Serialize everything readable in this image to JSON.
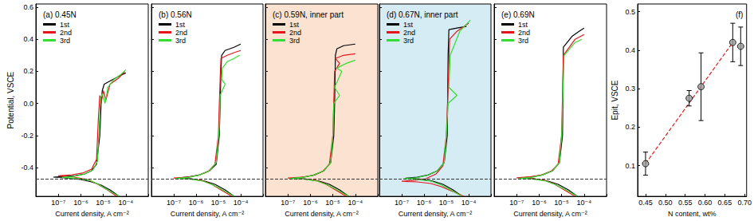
{
  "chart_data": [
    {
      "type": "line",
      "title": "(a) 0.45N",
      "xlabel": "Current density, A cm⁻²",
      "ylabel": "Potential, VSCE",
      "log": "x",
      "xlim": [
        1e-08,
        0.001
      ],
      "xticks": [
        {
          "value": 1e-07,
          "label": "10⁻⁷"
        },
        {
          "value": 1e-06,
          "label": "10⁻⁶"
        },
        {
          "value": 1e-05,
          "label": "10⁻⁵"
        },
        {
          "value": 0.0001,
          "label": "10⁻⁴"
        }
      ],
      "ylim": [
        -0.58,
        0.62
      ],
      "yticks": [
        -0.4,
        -0.2,
        {
          "value": 0,
          "label": "0.0"
        },
        0.2,
        0.4,
        0.6
      ],
      "hline": -0.47,
      "legend": "upper left",
      "tick_labels": true,
      "grid": false,
      "series": [
        {
          "name": "1st",
          "color": "#000000",
          "x": [
            5e-05,
            2e-05,
            8e-06,
            3e-06,
            1e-06,
            2e-07,
            6e-08,
            2e-07,
            6e-07,
            1.5e-06,
            3e-06,
            5e-06,
            7e-06,
            8e-06,
            9e-06,
            1.1e-05,
            2e-05,
            5e-05,
            0.0001
          ],
          "values": [
            -0.58,
            -0.54,
            -0.51,
            -0.49,
            -0.475,
            -0.465,
            -0.46,
            -0.455,
            -0.45,
            -0.44,
            -0.42,
            -0.38,
            -0.2,
            0.0,
            0.08,
            0.12,
            0.14,
            0.17,
            0.19
          ]
        },
        {
          "name": "2nd",
          "color": "#e8141c",
          "x": [
            4e-05,
            1.5e-05,
            5e-06,
            2e-06,
            5e-07,
            1e-07,
            4e-07,
            1.2e-06,
            3e-06,
            5e-06,
            6e-06,
            7e-06,
            8e-06,
            1e-05,
            1.3e-05,
            2e-05,
            5e-05,
            9e-05
          ],
          "values": [
            -0.58,
            -0.54,
            -0.5,
            -0.475,
            -0.46,
            -0.452,
            -0.445,
            -0.435,
            -0.41,
            -0.35,
            -0.1,
            0.05,
            0.0,
            0.08,
            0.02,
            0.12,
            0.16,
            0.2
          ]
        },
        {
          "name": "3rd",
          "color": "#33dd33",
          "x": [
            5e-05,
            1.8e-05,
            6e-06,
            2.5e-06,
            7e-07,
            1.5e-07,
            5e-07,
            1.4e-06,
            3.5e-06,
            5.5e-06,
            6.5e-06,
            7.5e-06,
            9e-06,
            1.2e-05,
            1.6e-05,
            3e-05,
            6e-05,
            0.0001
          ],
          "values": [
            -0.58,
            -0.545,
            -0.505,
            -0.48,
            -0.468,
            -0.462,
            -0.455,
            -0.442,
            -0.415,
            -0.36,
            -0.15,
            0.03,
            0.06,
            0.0,
            0.1,
            0.15,
            0.18,
            0.21
          ]
        }
      ]
    },
    {
      "type": "line",
      "title": "(b) 0.56N",
      "xlabel": "Current density, A cm⁻²",
      "log": "x",
      "xlim": [
        1e-08,
        0.001
      ],
      "xticks": [
        {
          "value": 1e-07,
          "label": "10⁻⁷"
        },
        {
          "value": 1e-06,
          "label": "10⁻⁶"
        },
        {
          "value": 1e-05,
          "label": "10⁻⁵"
        },
        {
          "value": 0.0001,
          "label": "10⁻⁴"
        }
      ],
      "ylim": [
        -0.58,
        0.62
      ],
      "yticks": [
        -0.4,
        -0.2,
        {
          "value": 0,
          "label": "0.0"
        },
        0.2,
        0.4,
        0.6
      ],
      "hline": -0.47,
      "legend": "upper left",
      "tick_labels": "x",
      "grid": false,
      "series": [
        {
          "name": "1st",
          "color": "#000000",
          "x": [
            5e-05,
            2e-05,
            7e-06,
            2.5e-06,
            6e-07,
            1.5e-07,
            5e-07,
            1.5e-06,
            4e-06,
            8e-06,
            1.1e-05,
            1.2e-05,
            1.3e-05,
            1.4e-05,
            2e-05,
            5e-05,
            0.0001
          ],
          "values": [
            -0.58,
            -0.54,
            -0.505,
            -0.485,
            -0.47,
            -0.465,
            -0.458,
            -0.445,
            -0.42,
            -0.38,
            -0.2,
            0.0,
            0.2,
            0.3,
            0.33,
            0.35,
            0.37
          ]
        },
        {
          "name": "2nd",
          "color": "#e8141c",
          "x": [
            4e-05,
            1.5e-05,
            5e-06,
            1.8e-06,
            4e-07,
            1e-07,
            4e-07,
            1.2e-06,
            3.5e-06,
            7e-06,
            1e-05,
            1.1e-05,
            1.2e-05,
            1.3e-05,
            2.5e-05,
            6e-05,
            0.0001
          ],
          "values": [
            -0.58,
            -0.545,
            -0.505,
            -0.48,
            -0.47,
            -0.466,
            -0.46,
            -0.45,
            -0.425,
            -0.38,
            -0.2,
            0.0,
            0.15,
            0.28,
            0.3,
            0.32,
            0.33
          ]
        },
        {
          "name": "3rd",
          "color": "#33dd33",
          "x": [
            5e-05,
            1.8e-05,
            6e-06,
            2e-06,
            5e-07,
            1.2e-07,
            4.5e-07,
            1.3e-06,
            4e-06,
            8e-06,
            1.1e-05,
            1.2e-05,
            2e-05,
            1.4e-05,
            1.5e-05,
            2.5e-05,
            5e-05,
            9e-05
          ],
          "values": [
            -0.58,
            -0.545,
            -0.51,
            -0.485,
            -0.472,
            -0.468,
            -0.462,
            -0.448,
            -0.42,
            -0.37,
            -0.15,
            0.05,
            0.12,
            0.15,
            0.22,
            0.26,
            0.28,
            0.3
          ]
        }
      ]
    },
    {
      "type": "line",
      "title": "(c) 0.59N, inner part",
      "xlabel": "Current density, A cm⁻²",
      "log": "x",
      "xlim": [
        1e-08,
        0.001
      ],
      "xticks": [
        {
          "value": 1e-07,
          "label": "10⁻⁷"
        },
        {
          "value": 1e-06,
          "label": "10⁻⁶"
        },
        {
          "value": 1e-05,
          "label": "10⁻⁵"
        },
        {
          "value": 0.0001,
          "label": "10⁻⁴"
        }
      ],
      "ylim": [
        -0.58,
        0.62
      ],
      "yticks": [
        -0.4,
        -0.2,
        {
          "value": 0,
          "label": "0.0"
        },
        0.2,
        0.4,
        0.6
      ],
      "hline": -0.47,
      "legend": "upper left",
      "tick_labels": "x",
      "grid": false,
      "series": [
        {
          "name": "1st",
          "color": "#000000",
          "x": [
            5e-05,
            2e-05,
            7e-06,
            2.5e-06,
            6e-07,
            1.5e-07,
            5e-07,
            1.5e-06,
            4e-06,
            8e-06,
            1.1e-05,
            1.2e-05,
            1.3e-05,
            1.5e-05,
            3e-05,
            0.0001
          ],
          "values": [
            -0.58,
            -0.54,
            -0.505,
            -0.485,
            -0.472,
            -0.467,
            -0.46,
            -0.447,
            -0.42,
            -0.37,
            -0.2,
            0.0,
            0.3,
            0.34,
            0.36,
            0.37
          ]
        },
        {
          "name": "2nd",
          "color": "#e8141c",
          "x": [
            4e-05,
            1.5e-05,
            5e-06,
            1.8e-06,
            4e-07,
            1e-07,
            4e-07,
            1.2e-06,
            3.5e-06,
            7e-06,
            1e-05,
            1.1e-05,
            1.2e-05,
            2e-05,
            1.3e-05,
            3e-05,
            0.0001
          ],
          "values": [
            -0.58,
            -0.545,
            -0.505,
            -0.48,
            -0.47,
            -0.466,
            -0.46,
            -0.45,
            -0.425,
            -0.38,
            -0.2,
            0.0,
            0.2,
            0.25,
            0.28,
            0.3,
            0.31
          ]
        },
        {
          "name": "3rd",
          "color": "#33dd33",
          "x": [
            5e-05,
            1.8e-05,
            6e-06,
            2e-06,
            5e-07,
            1.2e-07,
            4.5e-07,
            1.3e-06,
            4e-06,
            8e-06,
            1e-05,
            1.1e-05,
            2e-05,
            1.2e-05,
            2.5e-05,
            1.5e-05,
            4e-05,
            0.0001
          ],
          "values": [
            -0.58,
            -0.545,
            -0.51,
            -0.485,
            -0.472,
            -0.468,
            -0.462,
            -0.448,
            -0.42,
            -0.37,
            -0.2,
            0.0,
            0.05,
            0.1,
            0.2,
            0.22,
            0.25,
            0.27
          ]
        }
      ]
    },
    {
      "type": "line",
      "title": "(d) 0.67N, inner part",
      "xlabel": "Current density, A cm⁻²",
      "log": "x",
      "xlim": [
        1e-08,
        0.001
      ],
      "xticks": [
        {
          "value": 1e-07,
          "label": "10⁻⁷"
        },
        {
          "value": 1e-06,
          "label": "10⁻⁶"
        },
        {
          "value": 1e-05,
          "label": "10⁻⁵"
        },
        {
          "value": 0.0001,
          "label": "10⁻⁴"
        }
      ],
      "ylim": [
        -0.58,
        0.62
      ],
      "yticks": [
        -0.4,
        -0.2,
        {
          "value": 0,
          "label": "0.0"
        },
        0.2,
        0.4,
        0.6
      ],
      "hline": -0.47,
      "legend": "upper left",
      "tick_labels": "x",
      "grid": false,
      "series": [
        {
          "name": "1st",
          "color": "#000000",
          "x": [
            5e-05,
            2e-05,
            7e-06,
            2.5e-06,
            6e-07,
            1.5e-07,
            5e-07,
            1.5e-06,
            4e-06,
            8e-06,
            1.1e-05,
            1.2e-05,
            1.3e-05,
            3e-05,
            8e-05
          ],
          "values": [
            -0.58,
            -0.54,
            -0.505,
            -0.485,
            -0.472,
            -0.467,
            -0.46,
            -0.447,
            -0.42,
            -0.37,
            -0.2,
            0.3,
            0.46,
            0.47,
            0.48
          ]
        },
        {
          "name": "2nd",
          "color": "#e8141c",
          "x": [
            6e-05,
            2e-05,
            6e-06,
            2e-06,
            5e-07,
            1e-07,
            4e-07,
            1.2e-06,
            3.5e-06,
            7e-06,
            1e-05,
            1.2e-05,
            1.4e-05,
            3e-05,
            0.0001
          ],
          "values": [
            -0.58,
            -0.55,
            -0.52,
            -0.5,
            -0.49,
            -0.486,
            -0.48,
            -0.47,
            -0.44,
            -0.39,
            -0.2,
            0.1,
            0.4,
            0.45,
            0.5
          ]
        },
        {
          "name": "3rd",
          "color": "#33dd33",
          "x": [
            5e-05,
            1.8e-05,
            6e-06,
            2e-06,
            5e-07,
            1.2e-07,
            4.5e-07,
            1.3e-06,
            4e-06,
            8e-06,
            1e-05,
            1.2e-05,
            3e-05,
            1.3e-05,
            1.5e-05,
            4e-05,
            0.00012
          ],
          "values": [
            -0.58,
            -0.545,
            -0.51,
            -0.485,
            -0.475,
            -0.47,
            -0.464,
            -0.45,
            -0.42,
            -0.37,
            -0.2,
            0.0,
            0.05,
            0.1,
            0.3,
            0.45,
            0.52
          ]
        }
      ]
    },
    {
      "type": "line",
      "title": "(e) 0.69N",
      "xlabel": "Current density, A cm⁻²",
      "log": "x",
      "xlim": [
        1e-08,
        0.001
      ],
      "xticks": [
        {
          "value": 1e-07,
          "label": "10⁻⁷"
        },
        {
          "value": 1e-06,
          "label": "10⁻⁶"
        },
        {
          "value": 1e-05,
          "label": "10⁻⁵"
        },
        {
          "value": 0.0001,
          "label": "10⁻⁴"
        }
      ],
      "ylim": [
        -0.58,
        0.62
      ],
      "yticks": [
        -0.4,
        -0.2,
        {
          "value": 0,
          "label": "0.0"
        },
        0.2,
        0.4,
        0.6
      ],
      "hline": -0.47,
      "legend": "upper left",
      "tick_labels": "x",
      "grid": false,
      "series": [
        {
          "name": "1st",
          "color": "#000000",
          "x": [
            5e-05,
            2e-05,
            7e-06,
            2.5e-06,
            6e-07,
            1.5e-07,
            5e-07,
            1.5e-06,
            4e-06,
            8e-06,
            1.1e-05,
            1.2e-05,
            3e-05,
            6e-05,
            0.0001
          ],
          "values": [
            -0.58,
            -0.54,
            -0.505,
            -0.485,
            -0.47,
            -0.465,
            -0.458,
            -0.445,
            -0.42,
            -0.37,
            -0.2,
            0.35,
            0.42,
            0.45,
            0.47
          ]
        },
        {
          "name": "2nd",
          "color": "#e8141c",
          "x": [
            4e-05,
            1.5e-05,
            5e-06,
            1.8e-06,
            4e-07,
            1e-07,
            4e-07,
            1.2e-06,
            3.5e-06,
            7e-06,
            1e-05,
            1.2e-05,
            4e-05,
            0.0001
          ],
          "values": [
            -0.58,
            -0.545,
            -0.505,
            -0.48,
            -0.468,
            -0.464,
            -0.458,
            -0.448,
            -0.422,
            -0.38,
            -0.2,
            0.3,
            0.4,
            0.43
          ]
        },
        {
          "name": "3rd",
          "color": "#33dd33",
          "x": [
            5e-05,
            1.8e-05,
            6e-06,
            2e-06,
            5e-07,
            1.2e-07,
            4.5e-07,
            1.3e-06,
            4e-06,
            8e-06,
            1e-05,
            1.3e-05,
            4e-05,
            8e-05
          ],
          "values": [
            -0.58,
            -0.545,
            -0.51,
            -0.485,
            -0.472,
            -0.468,
            -0.462,
            -0.448,
            -0.42,
            -0.37,
            -0.2,
            0.3,
            0.38,
            0.4
          ]
        }
      ]
    },
    {
      "type": "scatter",
      "title": "(f)",
      "xlabel": "N content, wt%",
      "ylabel": "Epit, VSCE",
      "xlim": [
        0.43,
        0.705
      ],
      "xticks": [
        0.45,
        {
          "value": 0.5,
          "label": "0.50"
        },
        0.55,
        {
          "value": 0.6,
          "label": "0.60"
        },
        0.65,
        {
          "value": 0.7,
          "label": "0.70"
        }
      ],
      "ylim": [
        0.02,
        0.52
      ],
      "yticks": [
        0.1,
        0.2,
        0.3,
        0.4,
        0.5
      ],
      "tick_labels": true,
      "grid": false,
      "series": [
        {
          "type": "scatter",
          "color": "#9a9a9a",
          "marker": "circle",
          "x": [
            0.45,
            0.56,
            0.59,
            0.67,
            0.69
          ],
          "values": [
            0.105,
            0.275,
            0.305,
            0.42,
            0.41
          ],
          "errors": [
            0.03,
            0.02,
            0.088,
            0.05,
            0.05
          ]
        },
        {
          "type": "line",
          "color": "#d62020",
          "line_style": "dashed",
          "x": [
            0.45,
            0.67
          ],
          "values": [
            0.105,
            0.42
          ]
        }
      ]
    }
  ]
}
